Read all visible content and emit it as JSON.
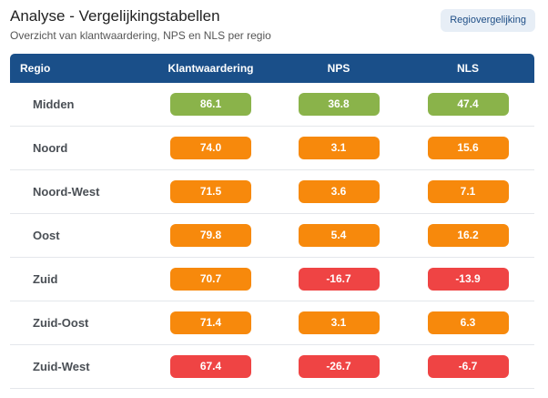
{
  "header": {
    "title": "Analyse - Vergelijkingstabellen",
    "subtitle": "Overzicht van klantwaardering, NPS en NLS per regio",
    "badge": "Regiovergelijking"
  },
  "colors": {
    "header_bg": "#1a4f89",
    "good": "#8ab34a",
    "medium": "#f7890c",
    "bad": "#ef4444"
  },
  "table": {
    "columns": [
      "Regio",
      "Klantwaardering",
      "NPS",
      "NLS"
    ],
    "rows": [
      {
        "region": "Midden",
        "klant": "86.1",
        "nps": "36.8",
        "nls": "47.4",
        "klant_level": "good",
        "nps_level": "good",
        "nls_level": "good"
      },
      {
        "region": "Noord",
        "klant": "74.0",
        "nps": "3.1",
        "nls": "15.6",
        "klant_level": "medium",
        "nps_level": "medium",
        "nls_level": "medium"
      },
      {
        "region": "Noord-West",
        "klant": "71.5",
        "nps": "3.6",
        "nls": "7.1",
        "klant_level": "medium",
        "nps_level": "medium",
        "nls_level": "medium"
      },
      {
        "region": "Oost",
        "klant": "79.8",
        "nps": "5.4",
        "nls": "16.2",
        "klant_level": "medium",
        "nps_level": "medium",
        "nls_level": "medium"
      },
      {
        "region": "Zuid",
        "klant": "70.7",
        "nps": "-16.7",
        "nls": "-13.9",
        "klant_level": "medium",
        "nps_level": "bad",
        "nls_level": "bad"
      },
      {
        "region": "Zuid-Oost",
        "klant": "71.4",
        "nps": "3.1",
        "nls": "6.3",
        "klant_level": "medium",
        "nps_level": "medium",
        "nls_level": "medium"
      },
      {
        "region": "Zuid-West",
        "klant": "67.4",
        "nps": "-26.7",
        "nls": "-6.7",
        "klant_level": "bad",
        "nps_level": "bad",
        "nls_level": "bad"
      }
    ]
  }
}
